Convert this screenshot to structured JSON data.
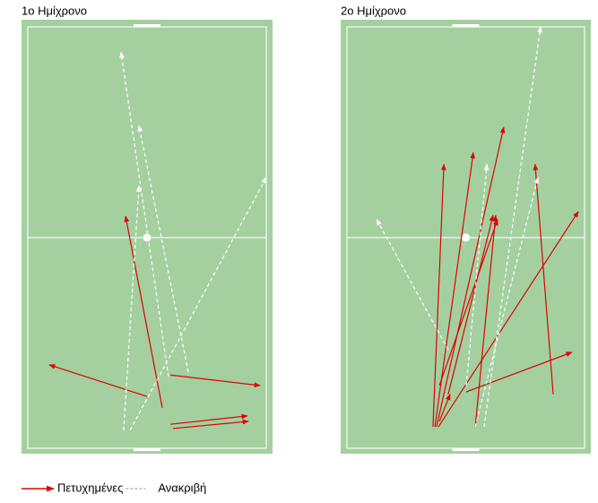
{
  "chart_data": [
    {
      "type": "pass-map",
      "title": "1ο Ημίχρονο",
      "xlim": [
        0,
        100
      ],
      "ylim": [
        0,
        100
      ],
      "series": [
        {
          "color": "#e00000",
          "dashed": false,
          "values": [
            [
              50.0,
              87.7,
              9.0,
              80.2
            ],
            [
              56.4,
              90.4,
              41.0,
              44.9
            ],
            [
              59.8,
              82.6,
              97.4,
              85.1
            ],
            [
              59.8,
              94.3,
              92.1,
              92.3
            ],
            [
              60.9,
              95.3,
              92.5,
              93.6
            ]
          ]
        },
        {
          "color": "#ffffff",
          "dashed": true,
          "values": [
            [
              59.0,
              83.0,
              39.1,
              6.0
            ],
            [
              67.3,
              81.9,
              46.6,
              23.4
            ],
            [
              40.2,
              95.7,
              46.6,
              37.7
            ],
            [
              42.9,
              95.7,
              100,
              35.7
            ]
          ]
        }
      ]
    },
    {
      "type": "pass-map",
      "title": "2ο Ημίχρονο",
      "xlim": [
        0,
        100
      ],
      "ylim": [
        0,
        100
      ],
      "series": [
        {
          "color": "#e00000",
          "dashed": false,
          "values": [
            [
              36.2,
              94.9,
              40.8,
              32.6
            ],
            [
              37.0,
              94.9,
              53.2,
              29.8
            ],
            [
              37.7,
              94.9,
              66.0,
              23.8
            ],
            [
              38.5,
              94.9,
              97.4,
              43.8
            ],
            [
              42.6,
              87.2,
              61.5,
              44.7
            ],
            [
              38.9,
              85.1,
              63.4,
              45.7
            ],
            [
              86.8,
              87.2,
              79.2,
              32.6
            ],
            [
              50.2,
              86.6,
              94.7,
              77.2
            ],
            [
              54.0,
              94.9,
              62.6,
              44.7
            ],
            [
              38.9,
              93.6,
              43.4,
              87.2
            ]
          ]
        },
        {
          "color": "#ffffff",
          "dashed": true,
          "values": [
            [
              42.6,
              76.6,
              12.5,
              45.7
            ],
            [
              57.7,
              94.9,
              81.5,
              0
            ],
            [
              54.0,
              94.9,
              80.4,
              35.7
            ],
            [
              50.2,
              85.1,
              58.9,
              32.6
            ]
          ]
        }
      ]
    }
  ],
  "legend": [
    {
      "name": "Πετυχημένες",
      "color": "#e00000",
      "dashed": false
    },
    {
      "name": "Ανακριβή",
      "color": "#ffffff",
      "dashed": true
    }
  ]
}
